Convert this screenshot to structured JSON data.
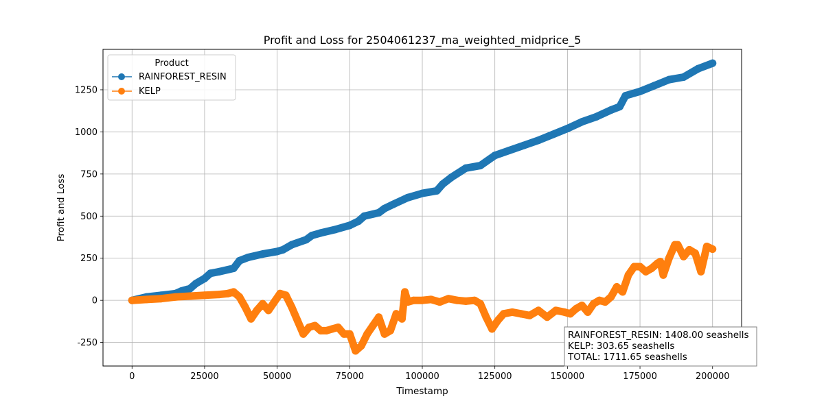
{
  "chart_data": {
    "type": "line",
    "title": "Profit and Loss for 2504061237_ma_weighted_midprice_5",
    "xlabel": "Timestamp",
    "ylabel": "Profit and Loss",
    "xlim": [
      -10000,
      210000
    ],
    "ylim": [
      -390,
      1490
    ],
    "x_ticks": [
      0,
      25000,
      50000,
      75000,
      100000,
      125000,
      150000,
      175000,
      200000
    ],
    "y_ticks": [
      -250,
      0,
      250,
      500,
      750,
      1000,
      1250
    ],
    "grid": true,
    "legend": {
      "title": "Product",
      "placement": "top-left",
      "entries": [
        "RAINFOREST_RESIN",
        "KELP"
      ]
    },
    "series": [
      {
        "name": "RAINFOREST_RESIN",
        "color": "#1f77b4",
        "x": [
          0,
          5000,
          10000,
          15000,
          17000,
          20000,
          22000,
          25000,
          27000,
          30000,
          35000,
          37000,
          40000,
          45000,
          50000,
          52000,
          55000,
          60000,
          62000,
          65000,
          70000,
          75000,
          78000,
          80000,
          85000,
          87000,
          90000,
          95000,
          100000,
          105000,
          107000,
          110000,
          115000,
          120000,
          125000,
          130000,
          135000,
          140000,
          145000,
          150000,
          155000,
          160000,
          165000,
          168000,
          170000,
          175000,
          180000,
          185000,
          190000,
          195000,
          200000
        ],
        "y": [
          0,
          20,
          30,
          40,
          55,
          70,
          100,
          130,
          160,
          170,
          190,
          235,
          255,
          275,
          290,
          300,
          330,
          360,
          385,
          400,
          420,
          445,
          470,
          500,
          520,
          545,
          570,
          610,
          635,
          650,
          690,
          730,
          785,
          800,
          860,
          890,
          920,
          950,
          985,
          1020,
          1060,
          1090,
          1130,
          1150,
          1215,
          1240,
          1275,
          1310,
          1325,
          1375,
          1408
        ]
      },
      {
        "name": "KELP",
        "color": "#ff7f0e",
        "x": [
          0,
          5000,
          10000,
          15000,
          20000,
          25000,
          30000,
          33000,
          35000,
          37000,
          39000,
          41000,
          43000,
          45000,
          47000,
          49000,
          51000,
          53000,
          55000,
          57000,
          59000,
          61000,
          63000,
          65000,
          67000,
          69000,
          71000,
          73000,
          75000,
          77000,
          79000,
          81000,
          83000,
          85000,
          87000,
          89000,
          91000,
          93000,
          94000,
          95000,
          97000,
          100000,
          103000,
          106000,
          109000,
          112000,
          115000,
          118000,
          120000,
          122000,
          124000,
          126000,
          128000,
          131000,
          134000,
          137000,
          140000,
          143000,
          146000,
          149000,
          151000,
          153000,
          155000,
          157000,
          159000,
          161000,
          163000,
          165000,
          167000,
          169000,
          171000,
          173000,
          175000,
          177000,
          179000,
          181000,
          182000,
          183000,
          185000,
          187000,
          188000,
          190000,
          192000,
          194000,
          196000,
          198000,
          200000
        ],
        "y": [
          0,
          5,
          10,
          20,
          25,
          30,
          35,
          40,
          50,
          20,
          -40,
          -110,
          -60,
          -20,
          -60,
          -10,
          40,
          30,
          -40,
          -120,
          -200,
          -160,
          -150,
          -180,
          -180,
          -170,
          -160,
          -200,
          -200,
          -300,
          -270,
          -200,
          -150,
          -100,
          -200,
          -180,
          -80,
          -110,
          50,
          -10,
          0,
          0,
          5,
          -10,
          10,
          0,
          -5,
          0,
          -20,
          -100,
          -170,
          -120,
          -80,
          -70,
          -80,
          -90,
          -60,
          -100,
          -60,
          -70,
          -80,
          -50,
          -30,
          -70,
          -20,
          0,
          -10,
          20,
          80,
          50,
          150,
          200,
          200,
          170,
          190,
          220,
          230,
          150,
          250,
          330,
          330,
          260,
          300,
          280,
          170,
          320,
          304
        ]
      }
    ],
    "annotation": {
      "lines": [
        "RAINFOREST_RESIN: 1408.00 seashells",
        "KELP: 303.65 seashells",
        "TOTAL: 1711.65 seashells"
      ],
      "placement": "bottom-right"
    }
  }
}
